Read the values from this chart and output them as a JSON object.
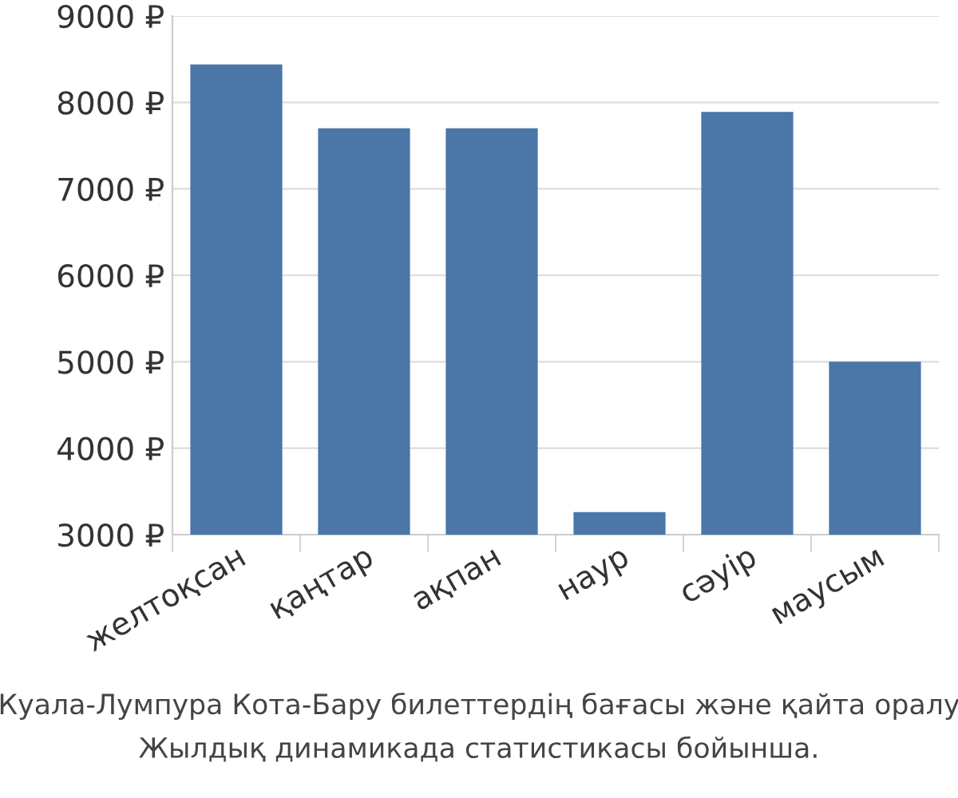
{
  "chart_data": {
    "type": "bar",
    "categories": [
      "желтоқсан",
      "қаңтар",
      "ақпан",
      "наур",
      "сәуір",
      "маусым"
    ],
    "values": [
      8440,
      7700,
      7700,
      3260,
      7890,
      5000
    ],
    "color": "#4a76a8",
    "ylim": [
      3000,
      9000
    ],
    "yticks": [
      {
        "value": 3000,
        "label": "3000 ₽"
      },
      {
        "value": 4000,
        "label": "4000 ₽"
      },
      {
        "value": 5000,
        "label": "5000 ₽"
      },
      {
        "value": 6000,
        "label": "6000 ₽"
      },
      {
        "value": 7000,
        "label": "7000 ₽"
      },
      {
        "value": 8000,
        "label": "8000 ₽"
      },
      {
        "value": 9000,
        "label": "9000 ₽"
      }
    ],
    "grid": "y",
    "annotations": [
      "Куала-Лумпура Кота-Бару билеттердің бағасы және қайта оралу",
      "Жылдық динамикада статистикасы бойынша."
    ]
  }
}
